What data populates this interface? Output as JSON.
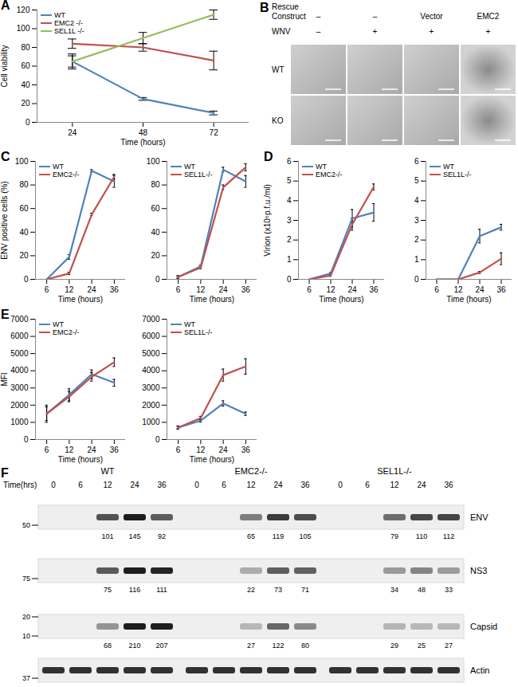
{
  "chart_data": [
    {
      "title": "A",
      "type": "line",
      "categories": [
        24,
        48,
        72
      ],
      "x_label": "Time (hours)",
      "y_label": "Cell viability",
      "ylim": [
        0,
        120
      ],
      "yticks": [
        0,
        20,
        40,
        60,
        80,
        100,
        120
      ],
      "legend": "top-left",
      "series": [
        {
          "name": "WT",
          "color": "#4f81bd",
          "values": [
            65,
            25,
            10
          ],
          "errors": [
            8,
            1.5,
            2
          ]
        },
        {
          "name": "EMC2 -/-",
          "color": "#c0504d",
          "values": [
            84,
            80,
            66
          ],
          "errors": [
            5,
            4,
            10
          ]
        },
        {
          "name": "SEL1L -/-",
          "color": "#9bbb59",
          "values": [
            65,
            90,
            115
          ],
          "errors": [
            6,
            6,
            5
          ]
        }
      ]
    },
    {
      "title": "C",
      "type": "line",
      "categories": [
        6,
        12,
        24,
        36
      ],
      "x_label": "Time (hours)",
      "y_label": "ENV positive cells (%)",
      "ylim": [
        0,
        100
      ],
      "yticks": [
        0,
        20,
        40,
        60,
        80,
        100
      ],
      "legend": "top-left",
      "series": [
        {
          "name": "WT",
          "color": "#4f81bd",
          "values": [
            0,
            19,
            92,
            83
          ],
          "errors": [
            0,
            2,
            1,
            5
          ]
        },
        {
          "name": "EMC2-/-",
          "color": "#c0504d",
          "values": [
            0,
            5,
            55,
            87
          ],
          "errors": [
            0,
            1,
            1,
            2
          ]
        }
      ]
    },
    {
      "type": "line",
      "categories": [
        6,
        12,
        24,
        36
      ],
      "x_label": "Time (hours)",
      "ylim": [
        0,
        100
      ],
      "yticks": [
        0,
        20,
        40,
        60,
        80,
        100
      ],
      "legend": "top-left",
      "series": [
        {
          "name": "WT",
          "color": "#4f81bd",
          "values": [
            2,
            11,
            93,
            83
          ],
          "errors": [
            1,
            1,
            2,
            5
          ]
        },
        {
          "name": "SEL1L-/-",
          "color": "#c0504d",
          "values": [
            2,
            10,
            78,
            95
          ],
          "errors": [
            1,
            1,
            2,
            3
          ]
        }
      ]
    },
    {
      "title": "D",
      "type": "line",
      "categories": [
        6,
        12,
        24,
        36
      ],
      "x_label": "Time (hours)",
      "y_label": "Virion (x10⁵p.f.u./ml)",
      "ylim": [
        0,
        6
      ],
      "yticks": [
        0,
        1,
        2,
        3,
        4,
        5,
        6
      ],
      "legend": "top-left",
      "series": [
        {
          "name": "WT",
          "color": "#4f81bd",
          "values": [
            0,
            0.3,
            3.1,
            3.4
          ],
          "errors": [
            0,
            0.05,
            0.45,
            0.45
          ]
        },
        {
          "name": "EMC2-/-",
          "color": "#c0504d",
          "values": [
            0,
            0.2,
            2.8,
            4.7
          ],
          "errors": [
            0,
            0.05,
            0.3,
            0.15
          ]
        }
      ]
    },
    {
      "type": "line",
      "categories": [
        6,
        12,
        24,
        36
      ],
      "x_label": "Time (hours)",
      "ylim": [
        0,
        6
      ],
      "yticks": [
        0,
        1,
        2,
        3,
        4,
        5,
        6
      ],
      "legend": "top-left",
      "series": [
        {
          "name": "WT",
          "color": "#4f81bd",
          "values": [
            0,
            0,
            2.2,
            2.65
          ],
          "errors": [
            0,
            0,
            0.35,
            0.15
          ]
        },
        {
          "name": "SEL1L-/-",
          "color": "#c0504d",
          "values": [
            0,
            0,
            0.35,
            1.05
          ],
          "errors": [
            0,
            0,
            0.05,
            0.3
          ]
        }
      ]
    },
    {
      "title": "E",
      "type": "line",
      "categories": [
        6,
        12,
        24,
        36
      ],
      "x_label": "Time (hours)",
      "y_label": "MFI",
      "ylim": [
        0,
        7000
      ],
      "yticks": [
        0,
        1000,
        2000,
        3000,
        4000,
        5000,
        6000,
        7000
      ],
      "legend": "top-left",
      "series": [
        {
          "name": "WT",
          "color": "#4f81bd",
          "values": [
            1500,
            2600,
            3800,
            3300
          ],
          "errors": [
            500,
            350,
            250,
            200
          ]
        },
        {
          "name": "EMC2-/-",
          "color": "#c0504d",
          "values": [
            1500,
            2500,
            3650,
            4500
          ],
          "errors": [
            400,
            300,
            250,
            250
          ]
        }
      ]
    },
    {
      "type": "line",
      "categories": [
        6,
        12,
        24,
        36
      ],
      "x_label": "Time (hours)",
      "ylim": [
        0,
        7000
      ],
      "yticks": [
        0,
        1000,
        2000,
        3000,
        4000,
        5000,
        6000,
        7000
      ],
      "legend": "top-left",
      "series": [
        {
          "name": "WT",
          "color": "#4f81bd",
          "values": [
            700,
            1100,
            2100,
            1500
          ],
          "errors": [
            80,
            80,
            150,
            100
          ]
        },
        {
          "name": "SEL1L-/-",
          "color": "#c0504d",
          "values": [
            700,
            1250,
            3750,
            4250
          ],
          "errors": [
            80,
            100,
            350,
            450
          ]
        }
      ]
    }
  ],
  "micrographs": {
    "title": "B",
    "header_label": [
      "Rescue",
      "Construct"
    ],
    "treatment_label": "WNV",
    "columns": [
      {
        "construct": "–",
        "wnv": "–"
      },
      {
        "construct": "–",
        "wnv": "+"
      },
      {
        "construct": "Vector",
        "wnv": "+"
      },
      {
        "construct": "EMC2",
        "wnv": "+"
      }
    ],
    "rows": [
      "WT",
      "KO"
    ]
  },
  "western_blot": {
    "title": "F",
    "time_label": "Time(hrs)",
    "times": [
      0,
      6,
      12,
      24,
      36
    ],
    "groups": [
      "WT",
      "EMC2-/-",
      "SEL1L-/-"
    ],
    "blots": [
      {
        "name": "ENV",
        "markers": [
          50
        ],
        "values": [
          [
            null,
            null,
            101,
            145,
            92
          ],
          [
            null,
            null,
            65,
            119,
            105
          ],
          [
            null,
            null,
            79,
            110,
            112
          ]
        ]
      },
      {
        "name": "NS3",
        "markers": [
          75
        ],
        "values": [
          [
            null,
            null,
            75,
            116,
            111
          ],
          [
            null,
            null,
            22,
            73,
            71
          ],
          [
            null,
            null,
            34,
            48,
            33
          ]
        ]
      },
      {
        "name": "Capsid",
        "markers": [
          20,
          10
        ],
        "values": [
          [
            null,
            null,
            68,
            210,
            207
          ],
          [
            null,
            null,
            27,
            122,
            80
          ],
          [
            null,
            null,
            29,
            25,
            27
          ]
        ]
      },
      {
        "name": "Actin",
        "markers": [
          37
        ]
      }
    ]
  }
}
